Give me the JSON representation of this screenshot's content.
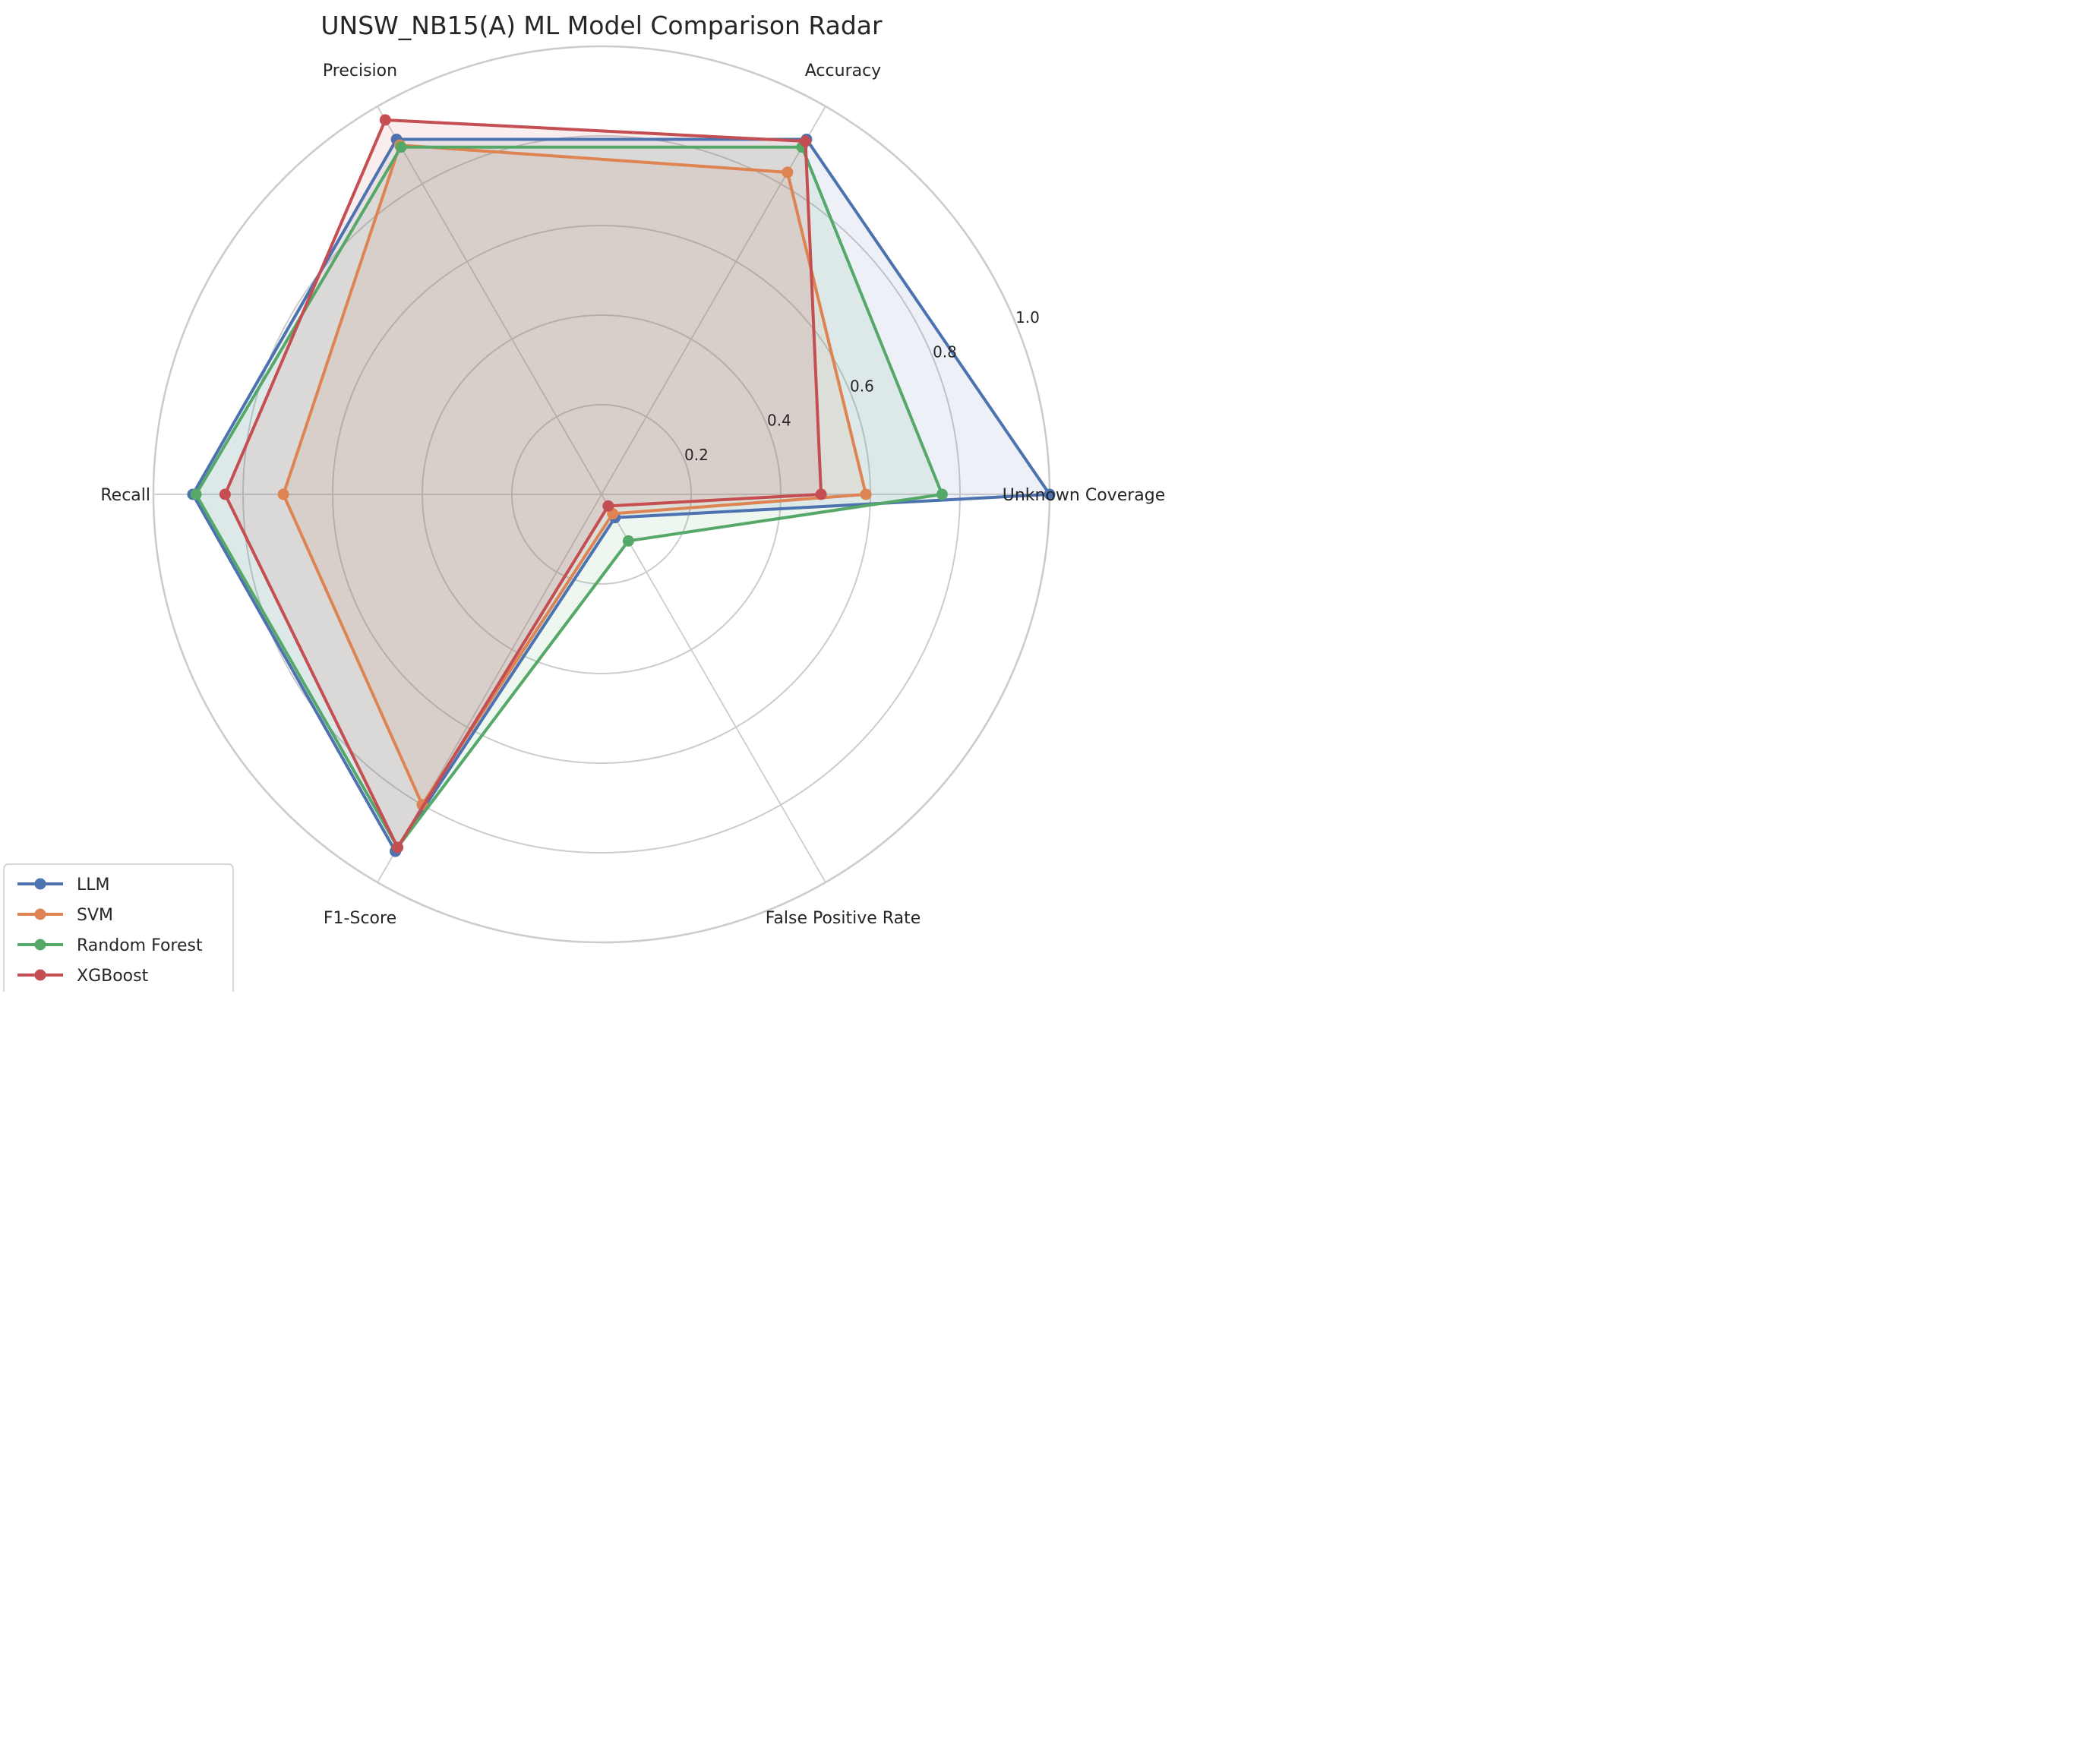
{
  "chart_data": {
    "type": "radar",
    "title": "UNSW_NB15(A) ML Model Comparison Radar",
    "axes": [
      "Unknown Coverage",
      "Accuracy",
      "Precision",
      "Recall",
      "F1-Score",
      "False Positive Rate"
    ],
    "rlim": [
      0,
      1.0
    ],
    "r_ticks": [
      {
        "value": 0.2,
        "label": "0.2"
      },
      {
        "value": 0.4,
        "label": "0.4"
      },
      {
        "value": 0.6,
        "label": "0.6"
      },
      {
        "value": 0.8,
        "label": "0.8"
      },
      {
        "value": 1.0,
        "label": "1.0"
      }
    ],
    "grid": true,
    "legend_position": "lower-left",
    "series": [
      {
        "name": "LLM",
        "color": "#4c72b0",
        "values": [
          1.0,
          0.915,
          0.915,
          0.912,
          0.92,
          0.06
        ]
      },
      {
        "name": "SVM",
        "color": "#dd8452",
        "values": [
          0.59,
          0.83,
          0.9,
          0.71,
          0.8,
          0.05
        ]
      },
      {
        "name": "Random Forest",
        "color": "#55a868",
        "values": [
          0.76,
          0.895,
          0.895,
          0.905,
          0.91,
          0.12
        ]
      },
      {
        "name": "XGBoost",
        "color": "#c44e52",
        "values": [
          0.49,
          0.91,
          0.965,
          0.84,
          0.91,
          0.03
        ]
      }
    ]
  }
}
